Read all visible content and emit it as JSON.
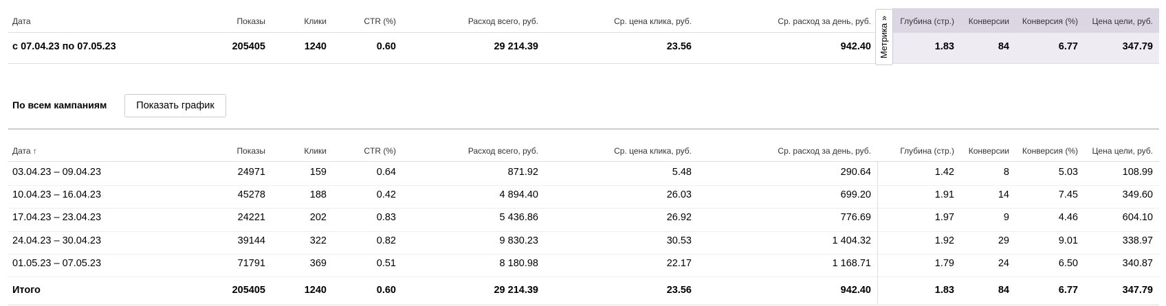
{
  "summary": {
    "headers": [
      "Дата",
      "Показы",
      "Клики",
      "CTR (%)",
      "Расход всего, руб.",
      "Ср. цена клика, руб.",
      "Ср. расход за день, руб.",
      "Глубина (стр.)",
      "Конверсии",
      "Конверсия (%)",
      "Цена цели, руб."
    ],
    "row": [
      "с 07.04.23 по 07.05.23",
      "205405",
      "1240",
      "0.60",
      "29 214.39",
      "23.56",
      "942.40",
      "1.83",
      "84",
      "6.77",
      "347.79"
    ],
    "metrika_tab": "Метрика »"
  },
  "section": {
    "title": "По всем кампаниям",
    "button": "Показать график"
  },
  "table": {
    "headers": [
      "Дата ↑",
      "Показы",
      "Клики",
      "CTR (%)",
      "Расход всего, руб.",
      "Ср. цена клика, руб.",
      "Ср. расход за день, руб.",
      "Глубина (стр.)",
      "Конверсии",
      "Конверсия (%)",
      "Цена цели, руб."
    ],
    "rows": [
      [
        "03.04.23 – 09.04.23",
        "24971",
        "159",
        "0.64",
        "871.92",
        "5.48",
        "290.64",
        "1.42",
        "8",
        "5.03",
        "108.99"
      ],
      [
        "10.04.23 – 16.04.23",
        "45278",
        "188",
        "0.42",
        "4 894.40",
        "26.03",
        "699.20",
        "1.91",
        "14",
        "7.45",
        "349.60"
      ],
      [
        "17.04.23 – 23.04.23",
        "24221",
        "202",
        "0.83",
        "5 436.86",
        "26.92",
        "776.69",
        "1.97",
        "9",
        "4.46",
        "604.10"
      ],
      [
        "24.04.23 – 30.04.23",
        "39144",
        "322",
        "0.82",
        "9 830.23",
        "30.53",
        "1 404.32",
        "1.92",
        "29",
        "9.01",
        "338.97"
      ],
      [
        "01.05.23 – 07.05.23",
        "71791",
        "369",
        "0.51",
        "8 180.98",
        "22.17",
        "1 168.71",
        "1.79",
        "24",
        "6.50",
        "340.87"
      ]
    ],
    "total": [
      "Итого",
      "205405",
      "1240",
      "0.60",
      "29 214.39",
      "23.56",
      "942.40",
      "1.83",
      "84",
      "6.77",
      "347.79"
    ]
  }
}
